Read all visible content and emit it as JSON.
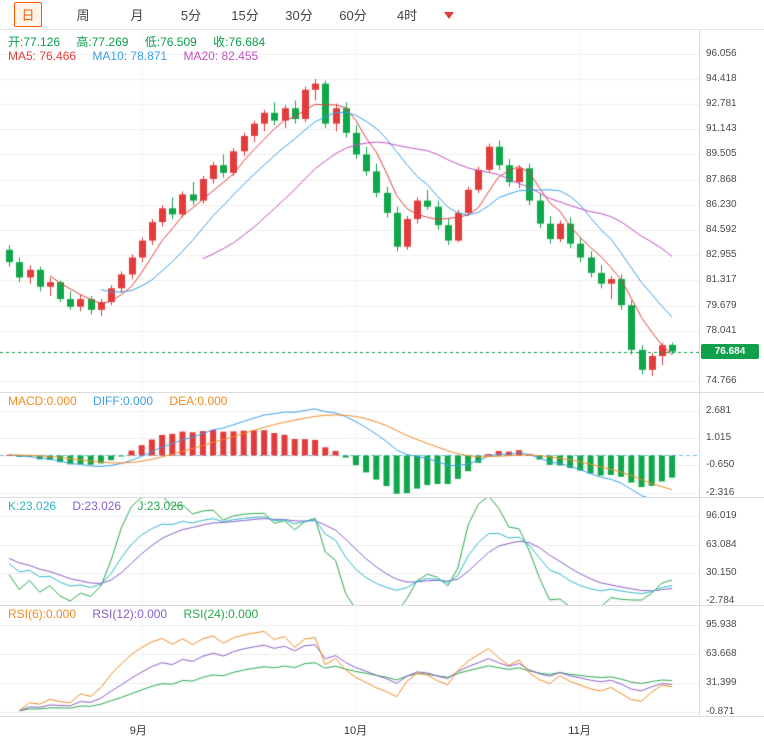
{
  "colors": {
    "up": "#e23b3b",
    "down": "#10a74a",
    "ma5": "#e0403e",
    "ma10": "#3ba0e8",
    "ma20": "#c051c0",
    "macd": "#f08c21",
    "diff": "#3ba0e8",
    "dea": "#f08c21",
    "k": "#2fb8c9",
    "d": "#8a5fc8",
    "j": "#2aa84f",
    "rsi6": "#f08c21",
    "rsi12": "#8a5fc8",
    "rsi24": "#2aa84f",
    "ohlc_text": "#0a9d4e",
    "accent": "#ff5a00",
    "accent_bg": "#fff4ea",
    "tag_bg": "#0fa04c",
    "grid": "#efefef",
    "vgrid": "#f3f3f3",
    "zero_line": "#79bde8",
    "last_price_line": "#0fa04c"
  },
  "toolbar": {
    "tabs": [
      {
        "label": "日",
        "active": true
      },
      {
        "label": "周"
      },
      {
        "label": "月"
      },
      {
        "label": "5分"
      },
      {
        "label": "15分"
      },
      {
        "label": "30分"
      },
      {
        "label": "60分"
      },
      {
        "label": "4时"
      }
    ]
  },
  "main_header": {
    "open_label": "开:",
    "open": "77.126",
    "high_label": "高:",
    "high": "77.269",
    "low_label": "低:",
    "low": "76.509",
    "close_label": "收:",
    "close": "76.684",
    "ma5": "MA5: 76.466",
    "ma10": "MA10: 78.871",
    "ma20": "MA20: 82.455"
  },
  "panel_headers": {
    "macd": {
      "macd": "MACD:0.000",
      "diff": "DIFF:0.000",
      "dea": "DEA:0.000"
    },
    "kdj": {
      "k": "K:23.026",
      "d": "D:23.026",
      "j": "J:23.026"
    },
    "rsi": {
      "r6": "RSI(6):0.000",
      "r12": "RSI(12):0.000",
      "r24": "RSI(24):0.000"
    }
  },
  "price_tag": "76.684",
  "chart_data": {
    "type": "candlestick",
    "ylim": [
      74.766,
      96.056
    ],
    "last_price": 76.684,
    "ma_periods": [
      5,
      10,
      20
    ],
    "rsi_periods": [
      6,
      12,
      24
    ],
    "axes": {
      "main": [
        "96.056",
        "94.418",
        "92.781",
        "91.143",
        "89.505",
        "87.868",
        "86.230",
        "84.592",
        "82.955",
        "81.317",
        "79.679",
        "78.041",
        "74.766"
      ],
      "macd": [
        "2.681",
        "1.015",
        "-0.650",
        "-2.316"
      ],
      "kdj": [
        "96.019",
        "63.084",
        "30.150",
        "-2.784"
      ],
      "rsi": [
        "95.938",
        "63.668",
        "31.399",
        "-0.871"
      ]
    },
    "x_ticks": [
      {
        "label": "9月",
        "index": 13
      },
      {
        "label": "10月",
        "index": 34
      },
      {
        "label": "11月",
        "index": 56
      }
    ],
    "ohlc": [
      [
        83.3,
        83.6,
        82.2,
        82.5
      ],
      [
        82.5,
        82.8,
        81.2,
        81.5
      ],
      [
        81.5,
        82.3,
        81.1,
        82.0
      ],
      [
        82.0,
        82.2,
        80.6,
        80.9
      ],
      [
        80.9,
        81.5,
        80.3,
        81.2
      ],
      [
        81.2,
        81.3,
        79.9,
        80.1
      ],
      [
        80.1,
        80.6,
        79.4,
        79.6
      ],
      [
        79.6,
        80.4,
        79.3,
        80.1
      ],
      [
        80.1,
        80.3,
        79.1,
        79.4
      ],
      [
        79.4,
        80.1,
        79.0,
        79.9
      ],
      [
        79.9,
        81.0,
        79.7,
        80.8
      ],
      [
        80.8,
        81.9,
        80.5,
        81.7
      ],
      [
        81.7,
        83.0,
        81.4,
        82.8
      ],
      [
        82.8,
        84.1,
        82.5,
        83.9
      ],
      [
        83.9,
        85.3,
        83.6,
        85.1
      ],
      [
        85.1,
        86.2,
        84.8,
        86.0
      ],
      [
        86.0,
        86.7,
        85.3,
        85.6
      ],
      [
        85.6,
        87.1,
        85.4,
        86.9
      ],
      [
        86.9,
        87.7,
        86.2,
        86.5
      ],
      [
        86.5,
        88.1,
        86.3,
        87.9
      ],
      [
        87.9,
        89.0,
        87.6,
        88.8
      ],
      [
        88.8,
        89.5,
        88.0,
        88.3
      ],
      [
        88.3,
        89.9,
        88.1,
        89.7
      ],
      [
        89.7,
        90.9,
        89.4,
        90.7
      ],
      [
        90.7,
        91.7,
        90.3,
        91.5
      ],
      [
        91.5,
        92.4,
        91.0,
        92.2
      ],
      [
        92.2,
        92.9,
        91.4,
        91.7
      ],
      [
        91.7,
        92.7,
        91.2,
        92.5
      ],
      [
        92.5,
        93.0,
        91.5,
        91.8
      ],
      [
        91.8,
        93.9,
        91.6,
        93.7
      ],
      [
        93.7,
        94.4,
        93.0,
        94.1
      ],
      [
        94.1,
        94.3,
        91.2,
        91.5
      ],
      [
        91.5,
        92.8,
        91.0,
        92.5
      ],
      [
        92.5,
        92.9,
        90.6,
        90.9
      ],
      [
        90.9,
        91.4,
        89.2,
        89.5
      ],
      [
        89.5,
        90.0,
        88.1,
        88.4
      ],
      [
        88.4,
        88.9,
        86.7,
        87.0
      ],
      [
        87.0,
        87.4,
        85.4,
        85.7
      ],
      [
        85.7,
        86.1,
        83.2,
        83.5
      ],
      [
        83.5,
        85.5,
        83.3,
        85.3
      ],
      [
        85.3,
        86.7,
        85.0,
        86.5
      ],
      [
        86.5,
        87.2,
        85.9,
        86.1
      ],
      [
        86.1,
        86.5,
        84.6,
        84.9
      ],
      [
        84.9,
        85.3,
        83.6,
        83.9
      ],
      [
        83.9,
        85.9,
        83.8,
        85.7
      ],
      [
        85.7,
        87.4,
        85.5,
        87.2
      ],
      [
        87.2,
        88.7,
        87.0,
        88.5
      ],
      [
        88.5,
        90.2,
        88.3,
        90.0
      ],
      [
        90.0,
        90.4,
        88.5,
        88.8
      ],
      [
        88.8,
        89.2,
        87.4,
        87.7
      ],
      [
        87.7,
        88.8,
        87.3,
        88.6
      ],
      [
        88.6,
        88.9,
        86.2,
        86.5
      ],
      [
        86.5,
        87.0,
        84.7,
        85.0
      ],
      [
        85.0,
        85.5,
        83.7,
        84.0
      ],
      [
        84.0,
        85.2,
        83.8,
        85.0
      ],
      [
        85.0,
        85.4,
        83.4,
        83.7
      ],
      [
        83.7,
        84.1,
        82.5,
        82.8
      ],
      [
        82.8,
        83.2,
        81.5,
        81.8
      ],
      [
        81.8,
        82.3,
        80.8,
        81.1
      ],
      [
        81.1,
        81.6,
        80.1,
        81.4
      ],
      [
        81.4,
        81.7,
        79.4,
        79.7
      ],
      [
        79.7,
        80.0,
        76.5,
        76.8
      ],
      [
        76.8,
        77.1,
        75.2,
        75.5
      ],
      [
        75.5,
        76.6,
        75.1,
        76.4
      ],
      [
        76.4,
        77.269,
        75.8,
        77.1
      ],
      [
        77.126,
        77.269,
        76.509,
        76.684
      ]
    ]
  }
}
